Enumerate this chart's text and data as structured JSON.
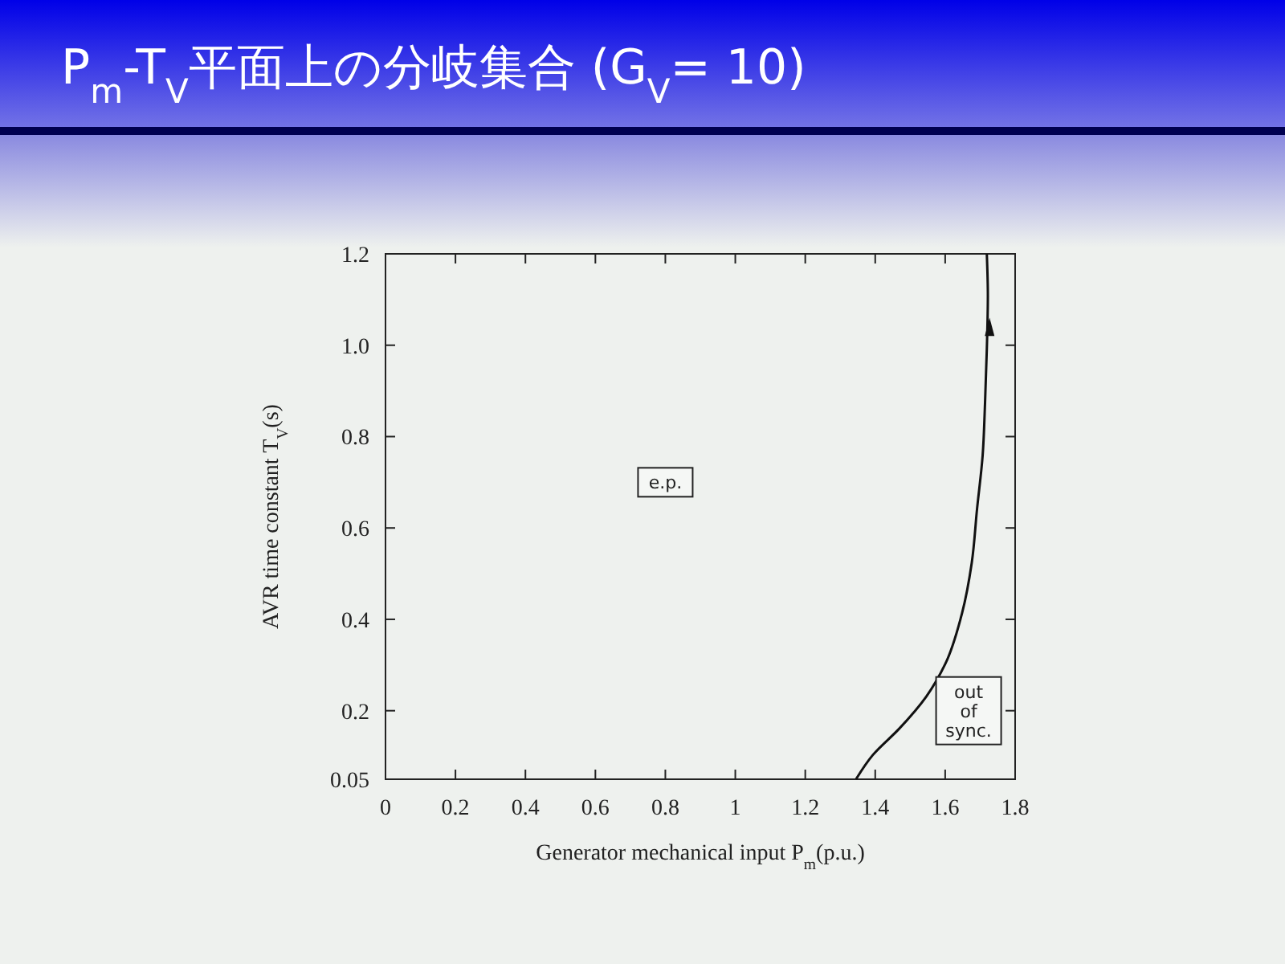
{
  "chart_data": {
    "type": "line",
    "title": "P$_{m}$-T$_{V}$平面上の分岐集合 (G$_{V}$= 10)",
    "xlabel": "Generator mechanical input  P$_{m}$(p.u.)",
    "ylabel": "AVR time constant  T$_{V}$(s)",
    "x": [
      1.345,
      1.393,
      1.469,
      1.546,
      1.6,
      1.646,
      1.676,
      1.691,
      1.707,
      1.714,
      1.719,
      1.722,
      1.719
    ],
    "series": [
      {
        "color": "#111111",
        "values": [
          0.05,
          0.103,
          0.161,
          0.231,
          0.302,
          0.407,
          0.524,
          0.641,
          0.758,
          0.875,
          0.991,
          1.108,
          1.2
        ]
      }
    ],
    "xlim": [
      0,
      1.8
    ],
    "xticks": [
      0,
      0.2,
      0.4,
      0.6,
      0.8,
      1,
      1.2,
      1.4,
      1.6,
      1.8
    ],
    "ylim": [
      0.05,
      1.2
    ],
    "yticks": [
      0.05,
      0.2,
      0.4,
      0.6,
      0.8,
      {
        "value": 1,
        "label": "1.0"
      },
      1.2
    ],
    "annotations": [
      {
        "text": "e.p.",
        "x": 0.8,
        "y": 0.7
      },
      {
        "text": "out of sync.",
        "x": 1.667,
        "y": 0.2
      }
    ],
    "grid": false,
    "marker": "none",
    "line_style": "solid"
  }
}
